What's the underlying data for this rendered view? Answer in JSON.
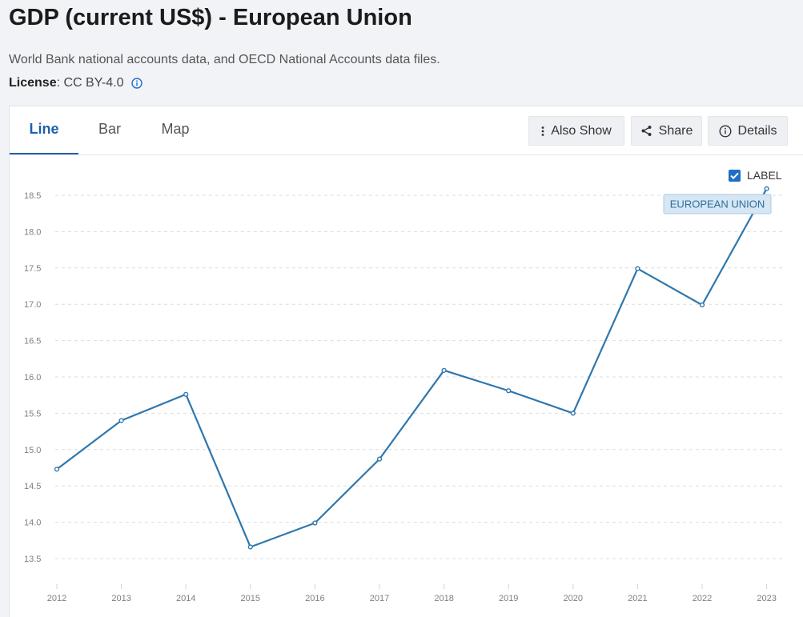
{
  "header": {
    "title": "GDP (current US$) - European Union",
    "source": "World Bank national accounts data, and OECD National Accounts data files.",
    "license_key": "License",
    "license_value": " : CC BY-4.0"
  },
  "tabs": [
    {
      "label": "Line",
      "active": true
    },
    {
      "label": "Bar",
      "active": false
    },
    {
      "label": "Map",
      "active": false
    }
  ],
  "toolbar": {
    "also_show_label": "Also Show",
    "share_label": "Share",
    "details_label": "Details"
  },
  "label_toggle": {
    "label": "LABEL",
    "checked": true
  },
  "icons": [
    "info-icon",
    "more-vertical-icon",
    "share-icon",
    "info-circle-icon",
    "checkmark-icon"
  ],
  "colors": {
    "series": "#2e77ad",
    "accent": "#1f5fa8",
    "label_bg": "#d6e6f3"
  },
  "chart_data": {
    "type": "line",
    "x": [
      "2012",
      "2013",
      "2014",
      "2015",
      "2016",
      "2017",
      "2018",
      "2019",
      "2020",
      "2021",
      "2022",
      "2023"
    ],
    "series": [
      {
        "name": "EUROPEAN UNION",
        "values": [
          14.73,
          15.4,
          15.76,
          13.66,
          13.99,
          14.87,
          16.09,
          15.81,
          15.5,
          17.49,
          16.99,
          18.59
        ]
      }
    ],
    "yticks": [
      13.5,
      14.0,
      14.5,
      15.0,
      15.5,
      16.0,
      16.5,
      17.0,
      17.5,
      18.0,
      18.5
    ],
    "ytick_labels": [
      "13.5",
      "14.0",
      "14.5",
      "15.0",
      "15.5",
      "16.0",
      "16.5",
      "17.0",
      "17.5",
      "18.0",
      "18.5"
    ],
    "ylim": [
      13.5,
      18.5
    ],
    "grid": true,
    "end_label": "EUROPEAN UNION"
  }
}
